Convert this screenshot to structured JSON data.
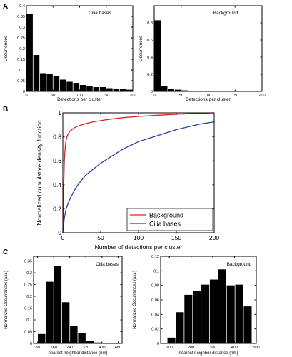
{
  "panel_labels": [
    "A",
    "B",
    "C"
  ],
  "chart_data": [
    {
      "id": "A1",
      "type": "bar",
      "annotation": "Cilia bases",
      "xlabel": "Detections per cluster",
      "ylabel": "Occurrences",
      "xlim": [
        0,
        200
      ],
      "ylim": [
        0,
        0.4
      ],
      "xticks": [
        0,
        50,
        100,
        150,
        200
      ],
      "yticks": [
        0,
        0.05,
        0.1,
        0.15,
        0.2,
        0.25,
        0.3,
        0.35,
        0.4
      ],
      "ytick_labels": [
        "0",
        "0.05",
        "0.1",
        "0.15",
        "0.2",
        "0.25",
        "0.3",
        "0.35",
        "0.4"
      ],
      "bin_width": 12.5,
      "bin_starts": [
        0,
        12.5,
        25,
        37.5,
        50,
        62.5,
        75,
        87.5,
        100,
        112.5,
        125,
        137.5,
        150,
        162.5,
        175,
        187.5
      ],
      "values": [
        0.36,
        0.17,
        0.085,
        0.08,
        0.07,
        0.055,
        0.045,
        0.04,
        0.03,
        0.025,
        0.02,
        0.02,
        0.015,
        0.012,
        0.01,
        0.008
      ]
    },
    {
      "id": "A2",
      "type": "bar",
      "annotation": "Background",
      "xlabel": "Detections per cluster",
      "ylabel": "Occurrences",
      "xlim": [
        0,
        200
      ],
      "ylim": [
        0,
        1
      ],
      "xticks": [
        0,
        50,
        100,
        150,
        200
      ],
      "yticks": [
        0,
        0.2,
        0.4,
        0.6,
        0.8
      ],
      "ytick_labels": [
        "0",
        "0.2",
        "0.4",
        "0.6",
        "0.8"
      ],
      "bin_width": 12.5,
      "bin_starts": [
        0,
        12.5,
        25,
        37.5,
        50,
        62.5,
        75,
        87.5
      ],
      "values": [
        0.83,
        0.06,
        0.03,
        0.02,
        0.012,
        0.008,
        0.005,
        0.004
      ]
    },
    {
      "id": "B",
      "type": "line",
      "xlabel": "Number of detections per cluster",
      "ylabel": "Normalized cumulative density function",
      "xlim": [
        0,
        200
      ],
      "ylim": [
        0,
        1
      ],
      "xticks": [
        0,
        50,
        100,
        150,
        200
      ],
      "yticks": [
        0,
        0.2,
        0.4,
        0.6,
        0.8,
        1
      ],
      "legend_position": "bottom-right",
      "series": [
        {
          "name": "Background",
          "color": "#e02020",
          "x": [
            0,
            1,
            2,
            3,
            4,
            5,
            6,
            8,
            10,
            15,
            20,
            30,
            40,
            50,
            60,
            80,
            100,
            120,
            150,
            175,
            200
          ],
          "y": [
            0,
            0.35,
            0.6,
            0.7,
            0.76,
            0.79,
            0.81,
            0.835,
            0.85,
            0.875,
            0.89,
            0.91,
            0.925,
            0.935,
            0.945,
            0.96,
            0.97,
            0.978,
            0.988,
            0.995,
            1.0
          ]
        },
        {
          "name": "Cilia bases",
          "color": "#2c3ea0",
          "x": [
            0,
            1,
            2,
            4,
            6,
            8,
            10,
            15,
            20,
            25,
            30,
            40,
            50,
            60,
            70,
            80,
            90,
            100,
            110,
            120,
            130,
            140,
            150,
            160,
            170,
            180,
            190,
            200
          ],
          "y": [
            0,
            0.07,
            0.12,
            0.19,
            0.23,
            0.26,
            0.29,
            0.35,
            0.4,
            0.44,
            0.48,
            0.53,
            0.58,
            0.62,
            0.66,
            0.7,
            0.73,
            0.76,
            0.78,
            0.8,
            0.82,
            0.84,
            0.86,
            0.875,
            0.89,
            0.905,
            0.915,
            0.925
          ]
        }
      ]
    },
    {
      "id": "C1",
      "type": "bar",
      "annotation": "Cilia bases",
      "xlabel": "nearest neighbor distance (nm)",
      "ylabel": "Normalized Occurrences (a.u.)",
      "xlim": [
        60,
        500
      ],
      "ylim": [
        0,
        0.37
      ],
      "xticks": [
        80,
        160,
        240,
        320,
        400,
        480
      ],
      "yticks": [
        0,
        0.05,
        0.1,
        0.15,
        0.2,
        0.25,
        0.3,
        0.35
      ],
      "ytick_labels": [
        "0",
        "0.05",
        "0.1",
        "0.15",
        "0.2",
        "0.25",
        "0.3",
        "0.35"
      ],
      "bin_width": 40,
      "bin_starts": [
        80,
        120,
        160,
        200,
        240,
        280,
        320,
        360
      ],
      "values": [
        0.04,
        0.262,
        0.33,
        0.175,
        0.075,
        0.045,
        0.012,
        0.004
      ]
    },
    {
      "id": "C2",
      "type": "bar",
      "annotation": "Background",
      "xlabel": "nearest neighbor distance (nm)",
      "ylabel": "Normalized Occurrences (a.u.)",
      "xlim": [
        60,
        500
      ],
      "ylim": [
        0,
        0.12
      ],
      "xticks": [
        100,
        200,
        300,
        400,
        500
      ],
      "yticks": [
        0,
        0.02,
        0.04,
        0.06,
        0.08,
        0.1,
        0.12
      ],
      "ytick_labels": [
        "0",
        "0.02",
        "0.04",
        "0.06",
        "0.08",
        "0.1",
        "0.12"
      ],
      "bin_width": 39,
      "bin_starts": [
        90,
        129,
        168,
        207,
        246,
        285,
        324,
        363,
        402,
        441
      ],
      "values": [
        0.008,
        0.043,
        0.067,
        0.072,
        0.081,
        0.088,
        0.102,
        0.08,
        0.081,
        0.051
      ]
    }
  ]
}
